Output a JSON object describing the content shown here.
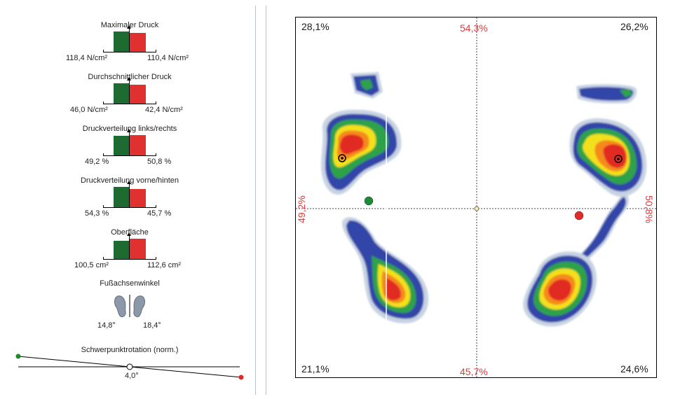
{
  "metrics": [
    {
      "title": "Maximaler Druck",
      "left": "118,4 N/cm²",
      "right": "110,4 N/cm²"
    },
    {
      "title": "Durchschnittlicher Druck",
      "left": "46,0 N/cm²",
      "right": "42,4 N/cm²"
    },
    {
      "title": "Druckverteilung links/rechts",
      "left": "49,2 %",
      "right": "50,8 %"
    },
    {
      "title": "Druckverteilung vorne/hinten",
      "left": "54,3 %",
      "right": "45,7 %"
    },
    {
      "title": "Oberfläche",
      "left": "100,5 cm²",
      "right": "112,6 cm²"
    }
  ],
  "foot_axis": {
    "title": "Fußachsenwinkel",
    "left": "14,8°",
    "right": "18,4°"
  },
  "cog_rotation": {
    "title": "Schwerpunktrotation (norm.)",
    "value": "4,0°"
  },
  "pressure_map": {
    "top_left": "28,1%",
    "top_right": "26,2%",
    "bottom_left": "21,1%",
    "bottom_right": "24,6%",
    "front": "54,3%",
    "back": "45,7%",
    "left": "49,2%",
    "right": "50,8%"
  },
  "colors": {
    "left_bar": "#1e6b32",
    "right_bar": "#e13030",
    "accent_red": "#e23a3a",
    "heat_blue": "#2b3fa8",
    "heat_green": "#2e9c3e",
    "heat_yellow": "#f4e21a",
    "heat_red": "#e12a23"
  }
}
